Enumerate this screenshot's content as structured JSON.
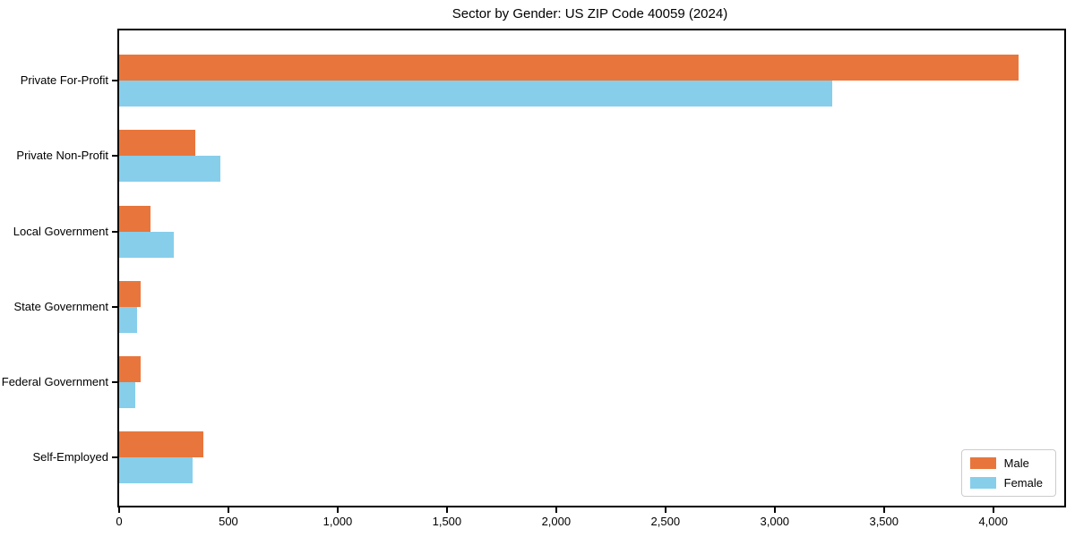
{
  "chart_data": {
    "type": "bar",
    "orientation": "horizontal",
    "title": "Sector by Gender: US ZIP Code 40059 (2024)",
    "xlabel": "",
    "ylabel": "",
    "grid": false,
    "legend_position": "lower right",
    "categories": [
      "Private For-Profit",
      "Private Non-Profit",
      "Local Government",
      "State Government",
      "Federal Government",
      "Self-Employed"
    ],
    "series": [
      {
        "name": "Male",
        "color": "#e8763c",
        "values": [
          4115,
          350,
          145,
          100,
          100,
          385
        ]
      },
      {
        "name": "Female",
        "color": "#87ceeb",
        "values": [
          3265,
          465,
          250,
          80,
          75,
          335
        ]
      }
    ],
    "xlim": [
      0,
      4325
    ],
    "xticks": [
      0,
      500,
      1000,
      1500,
      2000,
      2500,
      3000,
      3500,
      4000
    ],
    "xtick_labels": [
      "0",
      "500",
      "1,000",
      "1,500",
      "2,000",
      "2,500",
      "3,000",
      "3,500",
      "4,000"
    ]
  }
}
